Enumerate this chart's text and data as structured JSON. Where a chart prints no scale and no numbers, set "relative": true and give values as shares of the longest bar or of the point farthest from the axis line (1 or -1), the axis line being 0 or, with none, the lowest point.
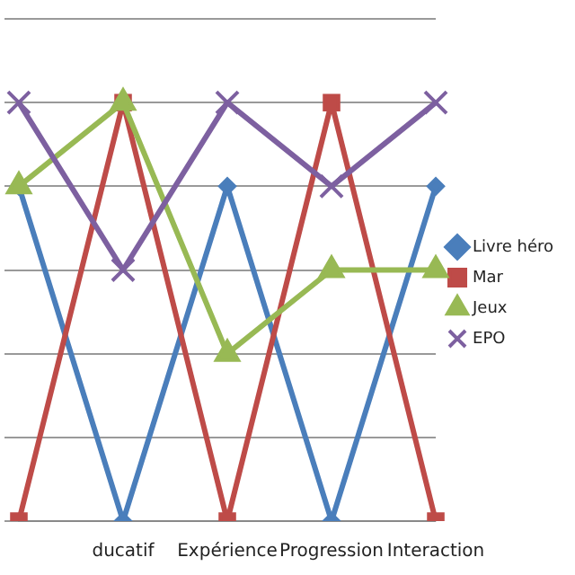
{
  "chart_data": {
    "type": "line",
    "relative": true,
    "categories": [
      null,
      "ducatif",
      "Expérience",
      "Progression",
      "Interaction"
    ],
    "series": [
      {
        "name": "Livre héro",
        "color": "#4a7ebb",
        "marker": "diamond",
        "values": [
          0.8,
          0,
          0.8,
          0,
          0.8
        ]
      },
      {
        "name": "Mar",
        "color": "#be4b48",
        "marker": "square",
        "values": [
          0,
          1,
          0,
          1,
          0
        ]
      },
      {
        "name": "Jeux",
        "color": "#98b954",
        "marker": "triangle",
        "values": [
          0.8,
          1,
          0.4,
          0.6,
          0.6
        ]
      },
      {
        "name": "EPO",
        "color": "#7d60a0",
        "marker": "cross",
        "values": [
          1,
          0.6,
          1,
          0.8,
          1
        ]
      }
    ],
    "grid": "y",
    "legend": "right"
  }
}
